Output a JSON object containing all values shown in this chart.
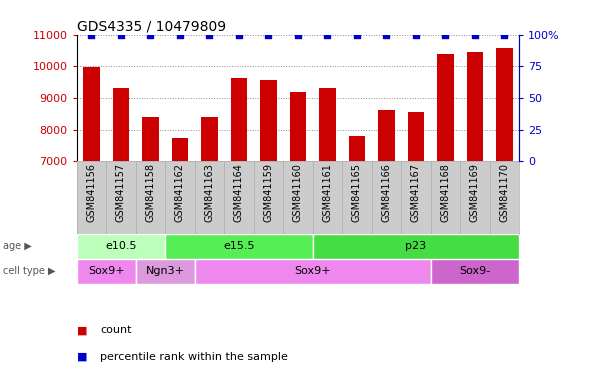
{
  "title": "GDS4335 / 10479809",
  "samples": [
    "GSM841156",
    "GSM841157",
    "GSM841158",
    "GSM841162",
    "GSM841163",
    "GSM841164",
    "GSM841159",
    "GSM841160",
    "GSM841161",
    "GSM841165",
    "GSM841166",
    "GSM841167",
    "GSM841168",
    "GSM841169",
    "GSM841170"
  ],
  "counts": [
    9980,
    9300,
    8380,
    7730,
    8380,
    9620,
    9580,
    9180,
    9300,
    7780,
    8620,
    8550,
    10380,
    10450,
    10580
  ],
  "percentile_ranks": [
    100,
    100,
    100,
    100,
    100,
    100,
    100,
    100,
    100,
    100,
    100,
    100,
    100,
    100,
    100
  ],
  "ylim_left": [
    7000,
    11000
  ],
  "ylim_right": [
    0,
    100
  ],
  "yticks_left": [
    7000,
    8000,
    9000,
    10000,
    11000
  ],
  "yticks_right": [
    0,
    25,
    50,
    75,
    100
  ],
  "bar_color": "#cc0000",
  "dot_color": "#0000cc",
  "grid_color": "#888888",
  "age_groups": [
    {
      "label": "e10.5",
      "start": 0,
      "end": 3,
      "color": "#bbffbb"
    },
    {
      "label": "e15.5",
      "start": 3,
      "end": 8,
      "color": "#55ee55"
    },
    {
      "label": "p23",
      "start": 8,
      "end": 15,
      "color": "#44dd44"
    }
  ],
  "cell_groups": [
    {
      "label": "Sox9+",
      "start": 0,
      "end": 2,
      "color": "#ee88ee"
    },
    {
      "label": "Ngn3+",
      "start": 2,
      "end": 4,
      "color": "#dd99dd"
    },
    {
      "label": "Sox9+",
      "start": 4,
      "end": 12,
      "color": "#ee88ee"
    },
    {
      "label": "Sox9-",
      "start": 12,
      "end": 15,
      "color": "#cc66cc"
    }
  ],
  "left_tick_color": "#cc0000",
  "right_tick_color": "#0000cc",
  "title_fontsize": 10,
  "bar_width": 0.55,
  "dot_size": 20,
  "label_fontsize": 7,
  "tick_fontsize": 8,
  "group_label_fontsize": 8,
  "row_label_fontsize": 7,
  "sample_bg_color": "#cccccc",
  "sample_grid_color": "#aaaaaa"
}
